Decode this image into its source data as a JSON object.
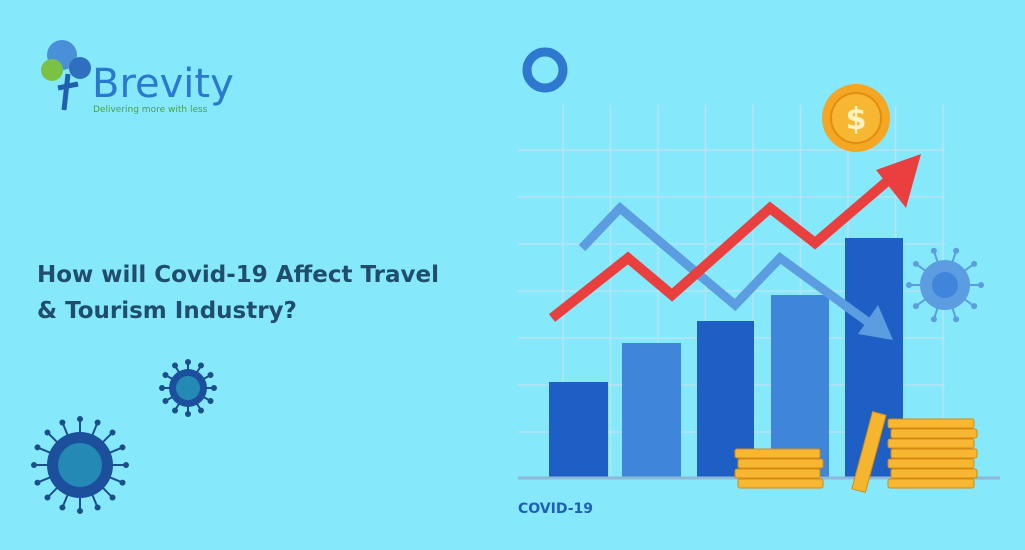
{
  "logo": {
    "name": "Brevity",
    "tagline": "Delivering more with less"
  },
  "headline": [
    "How will Covid-19 Affect Travel",
    "& Tourism Industry?"
  ],
  "illustration": {
    "coin_symbol": "$",
    "label": "COVID-19"
  }
}
